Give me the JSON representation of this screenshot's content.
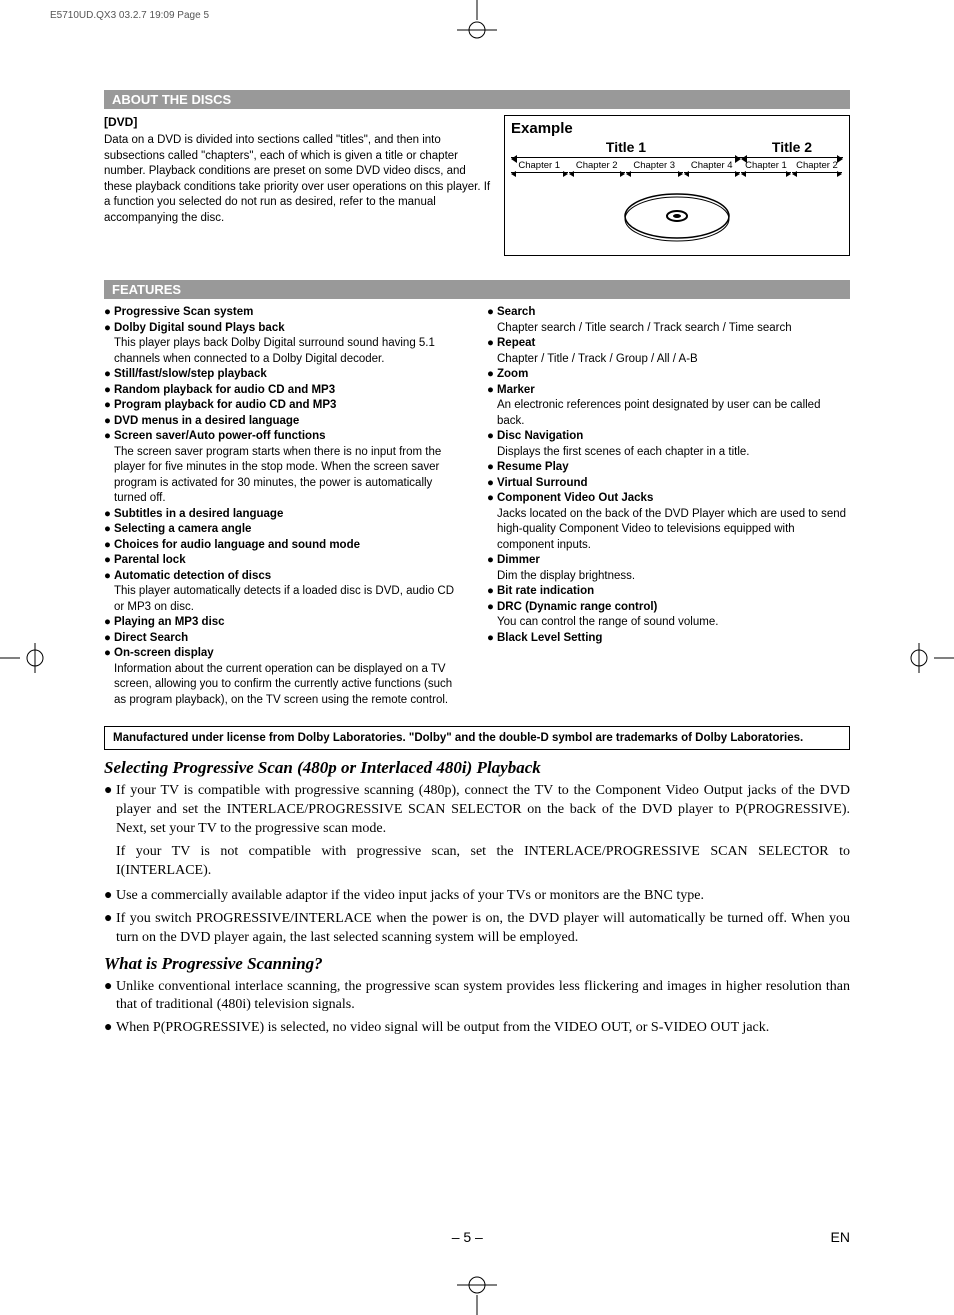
{
  "print_header": "E5710UD.QX3  03.2.7 19:09  Page 5",
  "sections": {
    "about_title": "ABOUT THE DISCS",
    "features_title": "FEATURES"
  },
  "dvd": {
    "subhead": "[DVD]",
    "body": "Data on a DVD is divided into sections called \"titles\", and then into subsections called \"chapters\", each of which is given a title or chapter number. Playback conditions are preset on some DVD video discs, and these playback conditions take priority over user operations on this player. If a function you selected do not run as desired, refer to the manual accompanying the disc."
  },
  "example": {
    "label": "Example",
    "title1": "Title 1",
    "title2": "Title 2",
    "chapters_t1": [
      "Chapter 1",
      "Chapter 2",
      "Chapter 3",
      "Chapter 4"
    ],
    "chapters_t2": [
      "Chapter 1",
      "Chapter 2"
    ]
  },
  "features_left": [
    {
      "bold": "Progressive Scan system"
    },
    {
      "bold": "Dolby Digital sound Plays back",
      "sub": "This player plays back Dolby Digital surround sound having 5.1 channels when connected to a Dolby Digital decoder."
    },
    {
      "bold": "Still/fast/slow/step playback"
    },
    {
      "bold": "Random playback for audio CD and MP3"
    },
    {
      "bold": "Program playback for audio CD and MP3"
    },
    {
      "bold": "DVD menus in a desired language"
    },
    {
      "bold": "Screen saver/Auto power-off functions",
      "sub": "The screen saver program starts when there is no input from the player for five minutes in the stop mode.  When the screen saver program is activated for 30 minutes, the power is automatically turned off."
    },
    {
      "bold": "Subtitles in a desired language"
    },
    {
      "bold": "Selecting a camera angle"
    },
    {
      "bold": "Choices for audio language and sound mode"
    },
    {
      "bold": "Parental lock"
    },
    {
      "bold": "Automatic detection of discs",
      "sub": "This player automatically detects if a loaded disc is DVD, audio CD or MP3 on disc."
    },
    {
      "bold": "Playing an MP3 disc"
    },
    {
      "bold": "Direct Search"
    },
    {
      "bold": "On-screen display",
      "sub": "Information about the current operation can be displayed on a TV screen, allowing you to confirm the currently active functions (such as program playback), on the TV screen using the remote control."
    }
  ],
  "features_right": [
    {
      "bold": "Search",
      "sub": "Chapter search / Title search / Track search / Time search"
    },
    {
      "bold": "Repeat",
      "sub": "Chapter / Title / Track / Group / All / A-B"
    },
    {
      "bold": "Zoom"
    },
    {
      "bold": "Marker",
      "sub": "An electronic references point designated by user can be called back."
    },
    {
      "bold": "Disc Navigation",
      "sub": "Displays the first scenes of each chapter in a title."
    },
    {
      "bold": "Resume Play"
    },
    {
      "bold": "Virtual Surround"
    },
    {
      "bold": "Component Video Out Jacks",
      "sub": "Jacks located on the back of the DVD Player which are used to send high-quality Component Video to televisions equipped with component inputs."
    },
    {
      "bold": "Dimmer",
      "sub": "Dim the display brightness."
    },
    {
      "bold": "Bit rate indication"
    },
    {
      "bold": "DRC (Dynamic range control)",
      "sub": "You can control the range of sound volume."
    },
    {
      "bold": "Black Level Setting"
    }
  ],
  "notice": "Manufactured under license from Dolby Laboratories. \"Dolby\" and the double-D symbol are trademarks of Dolby Laboratories.",
  "progressive": {
    "head": "Selecting Progressive Scan (480p or Interlaced 480i) Playback",
    "items": [
      "If your TV is compatible with progressive scanning (480p), connect the TV to the Component Video Output jacks of the DVD player and set the INTERLACE/PROGRESSIVE SCAN SELECTOR on the back of the DVD player to P(PROGRESSIVE). Next, set your TV to the progressive scan mode.",
      "Use a commercially available adaptor if the video input jacks of your TVs or monitors are the BNC type.",
      "If you switch PROGRESSIVE/INTERLACE when the power is on, the DVD player will automatically be turned off. When you turn on the DVD player again, the last selected scanning system will be employed."
    ],
    "item1_extra": "If your TV is not compatible with progressive scan, set the INTERLACE/PROGRESSIVE SCAN SELECTOR to I(INTERLACE)."
  },
  "whatps": {
    "head": "What is Progressive Scanning?",
    "items": [
      "Unlike conventional interlace scanning, the progressive scan system provides less flickering and images in higher resolution than that of traditional (480i) television signals.",
      "When P(PROGRESSIVE) is selected, no video signal will be output from the VIDEO OUT, or S-VIDEO OUT jack."
    ]
  },
  "footer": {
    "page": "– 5 –",
    "lang": "EN"
  },
  "colors": {
    "bar_bg": "#999999",
    "bar_fg": "#ffffff",
    "text": "#000000"
  }
}
